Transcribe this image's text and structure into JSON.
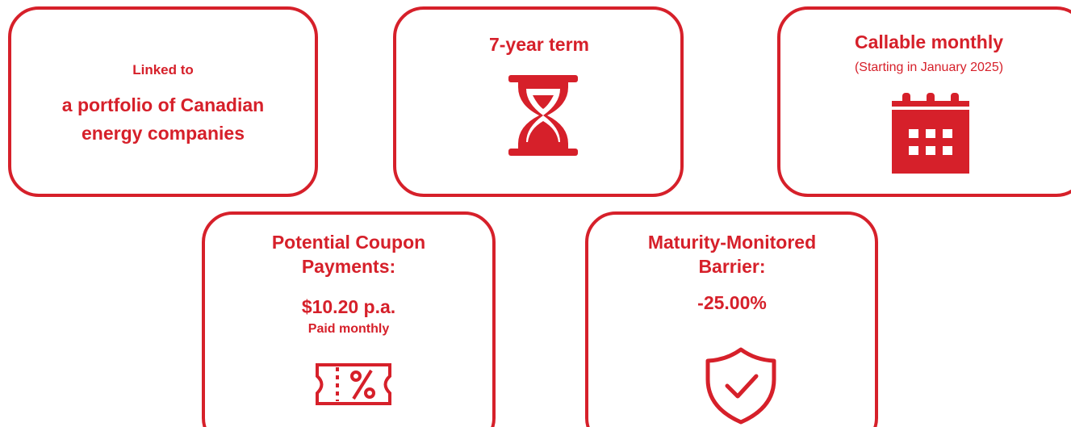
{
  "cards": [
    {
      "lines": [
        "Linked to",
        "a portfolio of Canadian",
        "energy companies"
      ]
    },
    {
      "lines": [
        "7-year term"
      ]
    },
    {
      "lines": [
        "Callable monthly",
        "(Starting in January 2025)"
      ]
    },
    {
      "lines": [
        "Potential Coupon",
        "Payments:",
        "$10.20 p.a.",
        "Paid monthly"
      ]
    },
    {
      "lines": [
        "Maturity-Monitored",
        "Barrier:",
        "-25.00%"
      ]
    }
  ]
}
